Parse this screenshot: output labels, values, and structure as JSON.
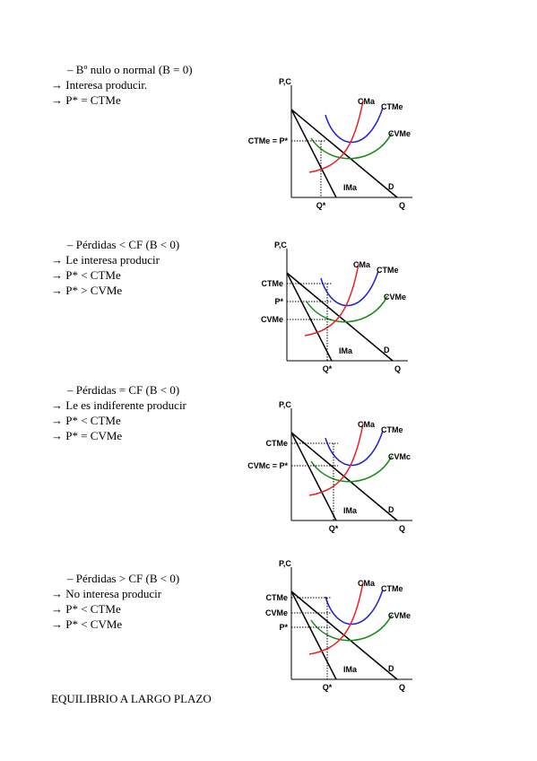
{
  "sections": [
    {
      "heading": "– Bº nulo o normal (B = 0)",
      "lines": [
        "→ Interesa producir.",
        "→ P* = CTMe"
      ],
      "diagram": {
        "y_axis": "P,C",
        "x_axis": "Q",
        "cma": "CMa",
        "ctme": "CTMe",
        "cvme": "CVMe",
        "left_labels": [
          "CTMe = P*"
        ],
        "ima": "IMa",
        "d": "D",
        "q_star": "Q*"
      }
    },
    {
      "heading": "– Pérdidas < CF (B < 0)",
      "lines": [
        "→ Le interesa producir",
        "→ P* < CTMe",
        "→ P* > CVMe"
      ],
      "diagram": {
        "y_axis": "P,C",
        "x_axis": "Q",
        "cma": "CMa",
        "ctme": "CTMe",
        "cvme": "CVMe",
        "left_labels": [
          "CTMe",
          "P*",
          "CVMe"
        ],
        "ima": "IMa",
        "d": "D",
        "q_star": "Q*"
      }
    },
    {
      "heading": "– Pérdidas = CF (B < 0)",
      "lines": [
        "→ Le es indiferente producir",
        "→ P* < CTMe",
        "→ P* = CVMe"
      ],
      "diagram": {
        "y_axis": "P,C",
        "x_axis": "Q",
        "cma": "CMa",
        "ctme": "CTMe",
        "cvme": "CVMc",
        "left_labels": [
          "CTMe",
          "CVMc = P*"
        ],
        "ima": "IMa",
        "d": "D",
        "q_star": "Q*"
      }
    },
    {
      "heading": "– Pérdidas > CF (B < 0)",
      "lines": [
        "→ No interesa producir",
        "→ P* < CTMe",
        "→ P* < CVMe"
      ],
      "diagram": {
        "y_axis": "P,C",
        "x_axis": "Q",
        "cma": "CMa",
        "ctme": "CTMe",
        "cvme": "CVMe",
        "left_labels": [
          "CTMe",
          "CVMe",
          "P*"
        ],
        "ima": "IMa",
        "d": "D",
        "q_star": "Q*"
      }
    }
  ],
  "footer": "EQUILIBRIO A LARGO PLAZO"
}
